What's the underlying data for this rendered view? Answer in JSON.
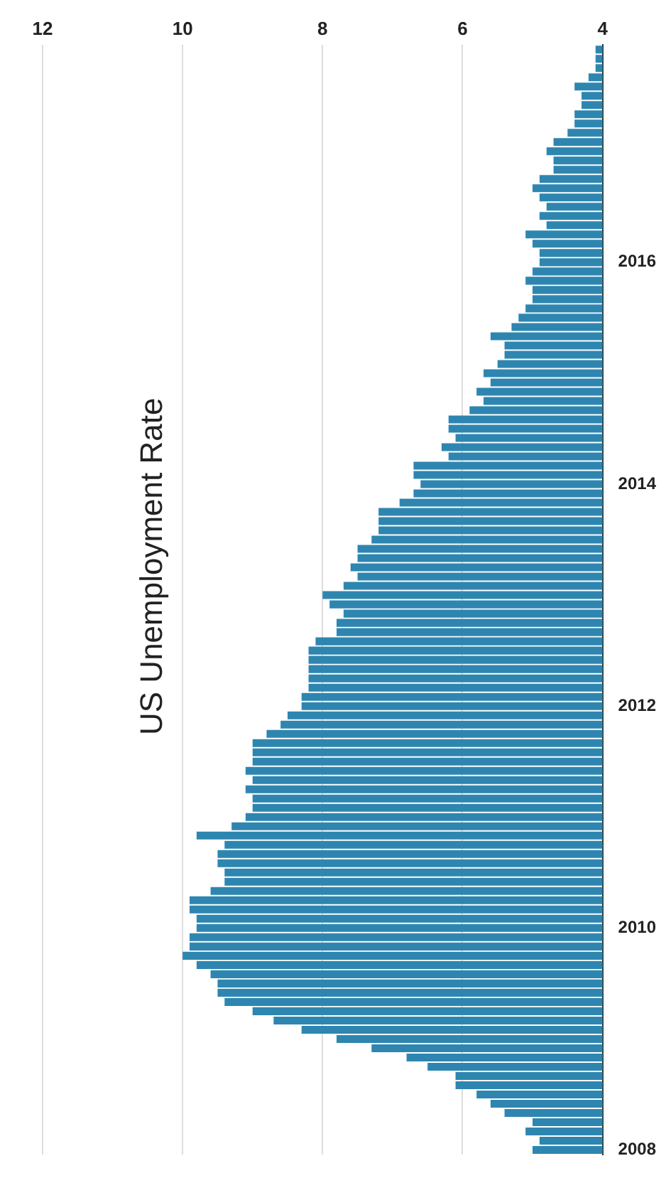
{
  "chart_data": {
    "type": "bar",
    "title": "US Unemployment Rate",
    "orientation": "horizontal",
    "categories": [
      null,
      null,
      null,
      null,
      null,
      null,
      null,
      null,
      null,
      null,
      null,
      null,
      null,
      null,
      null,
      null,
      null,
      null,
      null,
      null,
      null,
      null,
      null,
      "2016",
      null,
      null,
      null,
      null,
      null,
      null,
      null,
      null,
      null,
      null,
      null,
      null,
      null,
      null,
      null,
      null,
      null,
      null,
      null,
      null,
      null,
      null,
      null,
      "2014",
      null,
      null,
      null,
      null,
      null,
      null,
      null,
      null,
      null,
      null,
      null,
      null,
      null,
      null,
      null,
      null,
      null,
      null,
      null,
      null,
      null,
      null,
      null,
      "2012",
      null,
      null,
      null,
      null,
      null,
      null,
      null,
      null,
      null,
      null,
      null,
      null,
      null,
      null,
      null,
      null,
      null,
      null,
      null,
      null,
      null,
      null,
      null,
      "2010",
      null,
      null,
      null,
      null,
      null,
      null,
      null,
      null,
      null,
      null,
      null,
      null,
      null,
      null,
      null,
      null,
      null,
      null,
      null,
      null,
      null,
      null,
      null,
      "2008"
    ],
    "values": [
      4.1,
      4.1,
      4.1,
      4.2,
      4.4,
      4.3,
      4.3,
      4.4,
      4.4,
      4.5,
      4.7,
      4.8,
      4.7,
      4.7,
      4.9,
      5.0,
      4.9,
      4.8,
      4.9,
      4.8,
      5.1,
      5.0,
      4.9,
      4.9,
      5.0,
      5.1,
      5.0,
      5.0,
      5.1,
      5.2,
      5.3,
      5.6,
      5.4,
      5.4,
      5.5,
      5.7,
      5.6,
      5.8,
      5.7,
      5.9,
      6.2,
      6.2,
      6.1,
      6.3,
      6.2,
      6.7,
      6.7,
      6.6,
      6.7,
      6.9,
      7.2,
      7.2,
      7.2,
      7.3,
      7.5,
      7.5,
      7.6,
      7.5,
      7.7,
      8.0,
      7.9,
      7.7,
      7.8,
      7.8,
      8.1,
      8.2,
      8.2,
      8.2,
      8.2,
      8.2,
      8.3,
      8.3,
      8.5,
      8.6,
      8.8,
      9.0,
      9.0,
      9.0,
      9.1,
      9.0,
      9.1,
      9.0,
      9.0,
      9.1,
      9.3,
      9.8,
      9.4,
      9.5,
      9.5,
      9.4,
      9.4,
      9.6,
      9.9,
      9.9,
      9.8,
      9.8,
      9.9,
      9.9,
      10.0,
      9.8,
      9.6,
      9.5,
      9.5,
      9.4,
      9.0,
      8.7,
      8.3,
      7.8,
      7.3,
      6.8,
      6.5,
      6.1,
      6.1,
      5.8,
      5.6,
      5.4,
      5.0,
      5.1,
      4.9,
      5.0
    ],
    "color": "#2e86b0",
    "xlim": [
      12,
      4
    ],
    "xticks": [
      12,
      10,
      8,
      6,
      4
    ],
    "grid": "x"
  }
}
